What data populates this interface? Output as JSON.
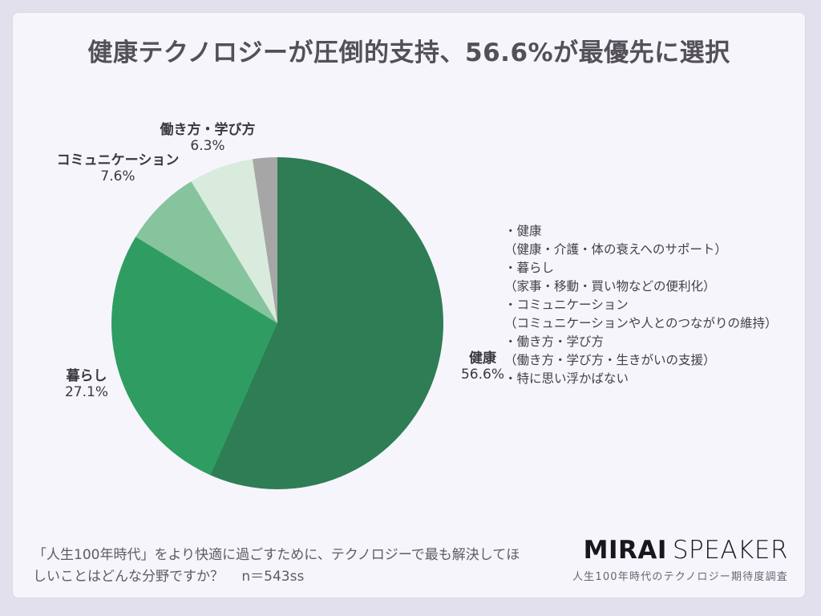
{
  "chart_data": {
    "type": "pie",
    "title": "健康テクノロジーが圧倒的支持、56.6%が最優先に選択",
    "direction": "clockwise",
    "start_angle_deg": 0,
    "total": 100,
    "segments": [
      {
        "label": "健康",
        "value": 56.6,
        "display": "56.6%",
        "color": "#2E7D54"
      },
      {
        "label": "暮らし",
        "value": 27.1,
        "display": "27.1%",
        "color": "#2F9D61"
      },
      {
        "label": "コミュニケーション",
        "value": 7.6,
        "display": "7.6%",
        "color": "#85C49C"
      },
      {
        "label": "働き方・学び方",
        "value": 6.3,
        "display": "6.3%",
        "color": "#D8EBDD"
      },
      {
        "label": "特に思い浮かばない",
        "value": 2.4,
        "display": "",
        "color": "#A7A6A6"
      }
    ],
    "legend_position": "right",
    "grid": false
  },
  "legend": {
    "lines": [
      "・健康",
      "（健康・介護・体の衰えへのサポート）",
      "・暮らし",
      "（家事・移動・買い物などの便利化）",
      "・コミュニケーション",
      "（コミュニケーションや人とのつながりの維持）",
      "・働き方・学び方",
      "（働き方・学び方・生きがいの支援）",
      "・特に思い浮かばない"
    ]
  },
  "footnote": {
    "line1": "「人生100年時代」をより快適に過ごすために、テクノロジーで最も解決してほ",
    "line2": "しいことはどんな分野ですか？　 n＝543ss"
  },
  "brand": {
    "name_bold": "MIRAI",
    "name_light": "SPEAKER",
    "subtitle": "人生100年時代のテクノロジー期待度調査"
  },
  "colors": {
    "outer_background": "#e2e0ec",
    "card_background": "#f6f5fb",
    "title_text": "#535058",
    "body_text": "#434048"
  }
}
